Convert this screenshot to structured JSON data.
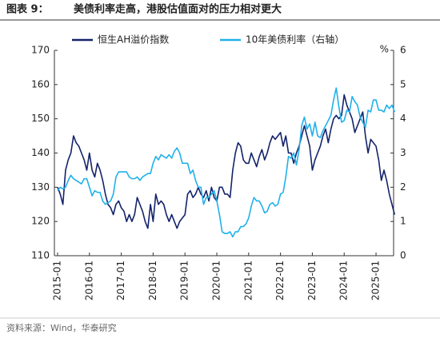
{
  "chart_data": {
    "type": "line",
    "figure_label": "图表 9：",
    "title": "美债利率走高，港股估值面对的压力相对更大",
    "source": "资料来源：Wind，华泰研究",
    "y2label": "%",
    "x": [
      "2015-01",
      "2015-02",
      "2015-03",
      "2015-04",
      "2015-05",
      "2015-06",
      "2015-07",
      "2015-08",
      "2015-09",
      "2015-10",
      "2015-11",
      "2015-12",
      "2016-01",
      "2016-02",
      "2016-03",
      "2016-04",
      "2016-05",
      "2016-06",
      "2016-07",
      "2016-08",
      "2016-09",
      "2016-10",
      "2016-11",
      "2016-12",
      "2017-01",
      "2017-02",
      "2017-03",
      "2017-04",
      "2017-05",
      "2017-06",
      "2017-07",
      "2017-08",
      "2017-09",
      "2017-10",
      "2017-11",
      "2017-12",
      "2018-01",
      "2018-02",
      "2018-03",
      "2018-04",
      "2018-05",
      "2018-06",
      "2018-07",
      "2018-08",
      "2018-09",
      "2018-10",
      "2018-11",
      "2018-12",
      "2019-01",
      "2019-02",
      "2019-03",
      "2019-04",
      "2019-05",
      "2019-06",
      "2019-07",
      "2019-08",
      "2019-09",
      "2019-10",
      "2019-11",
      "2019-12",
      "2020-01",
      "2020-02",
      "2020-03",
      "2020-04",
      "2020-05",
      "2020-06",
      "2020-07",
      "2020-08",
      "2020-09",
      "2020-10",
      "2020-11",
      "2020-12",
      "2021-01",
      "2021-02",
      "2021-03",
      "2021-04",
      "2021-05",
      "2021-06",
      "2021-07",
      "2021-08",
      "2021-09",
      "2021-10",
      "2021-11",
      "2021-12",
      "2022-01",
      "2022-02",
      "2022-03",
      "2022-04",
      "2022-05",
      "2022-06",
      "2022-07",
      "2022-08",
      "2022-09",
      "2022-10",
      "2022-11",
      "2022-12",
      "2023-01",
      "2023-02",
      "2023-03",
      "2023-04",
      "2023-05",
      "2023-06",
      "2023-07",
      "2023-08",
      "2023-09",
      "2023-10",
      "2023-11",
      "2023-12",
      "2024-01",
      "2024-02",
      "2024-03",
      "2024-04",
      "2024-05",
      "2024-06",
      "2024-07",
      "2024-08",
      "2024-09",
      "2024-10",
      "2024-11",
      "2024-12",
      "2025-01",
      "2025-02",
      "2025-03",
      "2025-04",
      "2025-05",
      "2025-06",
      "2025-07",
      "2025-08"
    ],
    "series": [
      {
        "name": "恒生AH溢价指数",
        "color": "#14236b",
        "axis": "y",
        "values": [
          130,
          128,
          125,
          135,
          138,
          140,
          145,
          143,
          142,
          140,
          138,
          135,
          140,
          135,
          133,
          137,
          135,
          132,
          128,
          125,
          124,
          122,
          125,
          126,
          124,
          123,
          120,
          122,
          120,
          122,
          127,
          125,
          123,
          120,
          118,
          125,
          120,
          128,
          125,
          126,
          125,
          122,
          120,
          122,
          120,
          118,
          120,
          121,
          122,
          128,
          129,
          127,
          128,
          130,
          128,
          127,
          129,
          126,
          130,
          127,
          126,
          130,
          130,
          128,
          128,
          127,
          135,
          140,
          143,
          142,
          138,
          137,
          137,
          140,
          138,
          136,
          139,
          141,
          138,
          140,
          143,
          145,
          144,
          145,
          146,
          142,
          145,
          140,
          140,
          137,
          140,
          142,
          145,
          148,
          145,
          142,
          135,
          138,
          140,
          142,
          145,
          147,
          143,
          147,
          150,
          151,
          150,
          151,
          157,
          154,
          152,
          150,
          146,
          148,
          150,
          152,
          145,
          140,
          144,
          143,
          142,
          138,
          132,
          135,
          132,
          128,
          125,
          122
        ]
      },
      {
        "name": "10年美债利率（右轴）",
        "color": "#1fb1ea",
        "axis": "y2",
        "values": [
          1.9,
          2.0,
          1.95,
          2.0,
          2.2,
          2.35,
          2.25,
          2.2,
          2.15,
          2.1,
          2.25,
          2.25,
          2.0,
          1.75,
          1.9,
          1.85,
          1.85,
          1.6,
          1.5,
          1.55,
          1.6,
          1.8,
          2.3,
          2.45,
          2.45,
          2.45,
          2.45,
          2.3,
          2.25,
          2.25,
          2.3,
          2.2,
          2.3,
          2.35,
          2.4,
          2.4,
          2.7,
          2.9,
          2.8,
          2.95,
          2.9,
          2.85,
          2.95,
          2.85,
          3.05,
          3.15,
          3.0,
          2.7,
          2.7,
          2.7,
          2.4,
          2.5,
          2.2,
          2.0,
          2.0,
          1.5,
          1.7,
          1.7,
          1.8,
          1.9,
          1.6,
          1.2,
          0.7,
          0.65,
          0.65,
          0.7,
          0.55,
          0.7,
          0.7,
          0.85,
          0.85,
          0.93,
          1.1,
          1.45,
          1.7,
          1.6,
          1.6,
          1.45,
          1.25,
          1.3,
          1.5,
          1.55,
          1.45,
          1.5,
          1.8,
          1.85,
          2.3,
          2.9,
          2.85,
          3.0,
          2.65,
          3.1,
          3.8,
          4.05,
          3.7,
          3.85,
          3.5,
          3.9,
          3.5,
          3.45,
          3.65,
          3.8,
          3.95,
          4.1,
          4.55,
          4.9,
          4.35,
          3.9,
          3.95,
          4.25,
          4.2,
          4.65,
          4.5,
          4.4,
          4.05,
          3.9,
          3.75,
          4.25,
          4.2,
          4.55,
          4.55,
          4.25,
          4.25,
          4.2,
          4.4,
          4.3,
          4.4,
          4.2
        ]
      }
    ],
    "ylim": [
      110,
      170
    ],
    "yticks": [
      110,
      120,
      130,
      140,
      150,
      160,
      170
    ],
    "y2lim": [
      0,
      6
    ],
    "y2ticks": [
      0,
      1,
      2,
      3,
      4,
      5,
      6
    ],
    "xticks": [
      "2015-01",
      "2016-01",
      "2017-01",
      "2018-01",
      "2019-01",
      "2020-01",
      "2021-01",
      "2022-01",
      "2023-01",
      "2024-01",
      "2025-01"
    ],
    "grid": false,
    "legend": "top"
  }
}
